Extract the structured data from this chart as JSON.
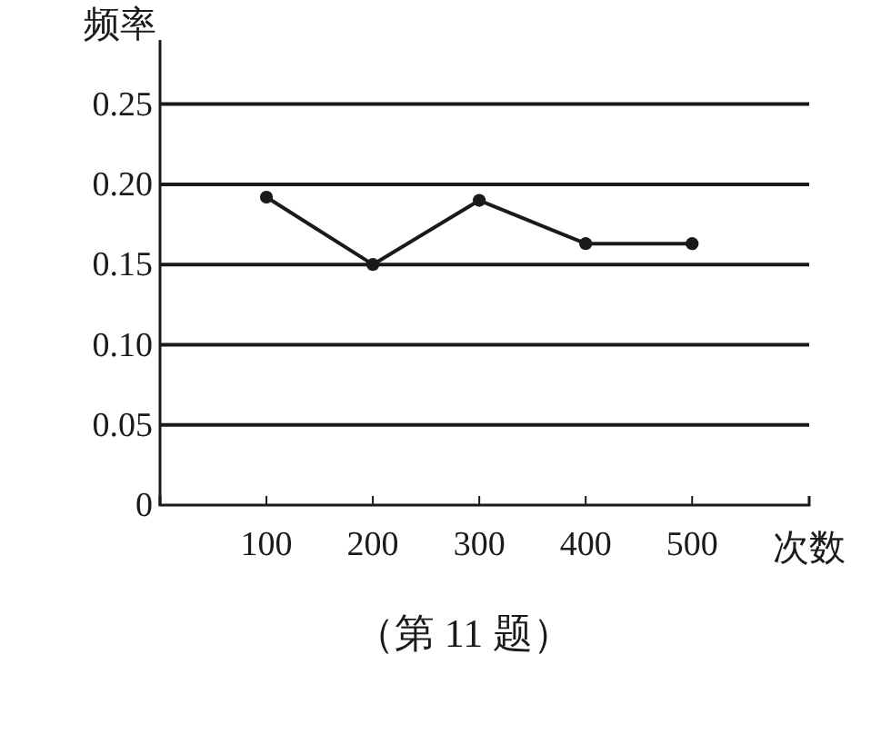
{
  "chart_data": {
    "type": "line",
    "xlabel": "次数",
    "ylabel": "频率",
    "annotations": [
      "（第 11 题）"
    ],
    "x": [
      100,
      200,
      300,
      400,
      500
    ],
    "series": [
      {
        "color": "#1a1a1a",
        "values": [
          0.192,
          0.15,
          0.19,
          0.163,
          0.163
        ]
      }
    ],
    "xlim": [
      0,
      610
    ],
    "xticks": [
      100,
      200,
      300,
      400,
      500
    ],
    "ylim": [
      0,
      0.29
    ],
    "yticks": [
      0,
      0.05,
      {
        "value": 0.1,
        "label": "0.10"
      },
      0.15,
      {
        "value": 0.2,
        "label": "0.20"
      },
      0.25
    ],
    "grid": "y",
    "marker": "circle",
    "line_style": "solid"
  }
}
